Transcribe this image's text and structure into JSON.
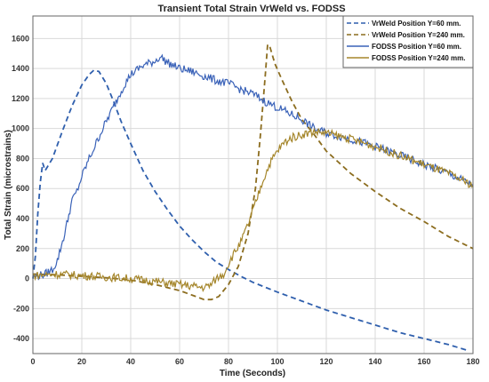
{
  "chart_data": {
    "type": "line",
    "title": "Transient Total Strain VrWeld vs. FODSS",
    "xlabel": "Time (Seconds)",
    "ylabel": "Total Strain (microstrains)",
    "xlim": [
      0,
      180
    ],
    "ylim": [
      -500,
      1750
    ],
    "xticks": [
      0,
      20,
      40,
      60,
      80,
      100,
      120,
      140,
      160,
      180
    ],
    "yticks": [
      -400,
      -200,
      0,
      200,
      400,
      600,
      800,
      1000,
      1200,
      1400,
      1600
    ],
    "grid": true,
    "legend_position": "top-right",
    "series": [
      {
        "name": "VrWeld Position Y=60 mm.",
        "style": "dashed",
        "color": "#2f5fad",
        "points": [
          [
            0,
            0
          ],
          [
            1,
            150
          ],
          [
            2,
            430
          ],
          [
            3,
            640
          ],
          [
            4,
            770
          ],
          [
            5,
            720
          ],
          [
            8,
            800
          ],
          [
            12,
            980
          ],
          [
            16,
            1150
          ],
          [
            20,
            1290
          ],
          [
            23,
            1360
          ],
          [
            25,
            1390
          ],
          [
            27,
            1380
          ],
          [
            30,
            1300
          ],
          [
            33,
            1180
          ],
          [
            36,
            1050
          ],
          [
            40,
            900
          ],
          [
            45,
            720
          ],
          [
            50,
            580
          ],
          [
            55,
            460
          ],
          [
            60,
            350
          ],
          [
            65,
            260
          ],
          [
            70,
            180
          ],
          [
            75,
            110
          ],
          [
            80,
            60
          ],
          [
            85,
            15
          ],
          [
            90,
            -25
          ],
          [
            100,
            -90
          ],
          [
            110,
            -150
          ],
          [
            120,
            -210
          ],
          [
            130,
            -260
          ],
          [
            140,
            -310
          ],
          [
            150,
            -360
          ],
          [
            160,
            -400
          ],
          [
            170,
            -440
          ],
          [
            178,
            -480
          ]
        ]
      },
      {
        "name": "VrWeld Position Y=240 mm.",
        "style": "dashed",
        "color": "#8c6d1f",
        "points": [
          [
            0,
            30
          ],
          [
            10,
            25
          ],
          [
            20,
            15
          ],
          [
            30,
            5
          ],
          [
            40,
            -10
          ],
          [
            50,
            -40
          ],
          [
            60,
            -80
          ],
          [
            65,
            -110
          ],
          [
            70,
            -140
          ],
          [
            73,
            -140
          ],
          [
            76,
            -120
          ],
          [
            80,
            -40
          ],
          [
            84,
            80
          ],
          [
            88,
            300
          ],
          [
            91,
            600
          ],
          [
            93,
            950
          ],
          [
            95,
            1350
          ],
          [
            96,
            1560
          ],
          [
            97,
            1540
          ],
          [
            99,
            1430
          ],
          [
            102,
            1320
          ],
          [
            106,
            1180
          ],
          [
            110,
            1060
          ],
          [
            115,
            960
          ],
          [
            120,
            850
          ],
          [
            130,
            700
          ],
          [
            140,
            580
          ],
          [
            150,
            470
          ],
          [
            160,
            380
          ],
          [
            170,
            280
          ],
          [
            180,
            200
          ]
        ]
      },
      {
        "name": "FODSS Position Y=60 mm.",
        "style": "solid",
        "color": "#3a62b8",
        "points": [
          [
            0,
            10
          ],
          [
            5,
            30
          ],
          [
            8,
            60
          ],
          [
            10,
            120
          ],
          [
            13,
            300
          ],
          [
            16,
            520
          ],
          [
            18,
            580
          ],
          [
            20,
            680
          ],
          [
            23,
            800
          ],
          [
            25,
            870
          ],
          [
            28,
            980
          ],
          [
            31,
            1080
          ],
          [
            34,
            1180
          ],
          [
            37,
            1280
          ],
          [
            40,
            1360
          ],
          [
            45,
            1420
          ],
          [
            50,
            1450
          ],
          [
            52,
            1480
          ],
          [
            55,
            1440
          ],
          [
            60,
            1400
          ],
          [
            65,
            1380
          ],
          [
            70,
            1350
          ],
          [
            75,
            1320
          ],
          [
            80,
            1300
          ],
          [
            85,
            1260
          ],
          [
            90,
            1230
          ],
          [
            95,
            1180
          ],
          [
            100,
            1140
          ],
          [
            105,
            1100
          ],
          [
            110,
            1060
          ],
          [
            115,
            1000
          ],
          [
            120,
            970
          ],
          [
            130,
            930
          ],
          [
            140,
            880
          ],
          [
            150,
            820
          ],
          [
            160,
            760
          ],
          [
            170,
            700
          ],
          [
            180,
            620
          ]
        ]
      },
      {
        "name": "FODSS Position Y=240 mm.",
        "style": "solid",
        "color": "#a5862b",
        "points": [
          [
            0,
            20
          ],
          [
            10,
            30
          ],
          [
            20,
            20
          ],
          [
            30,
            10
          ],
          [
            40,
            0
          ],
          [
            50,
            -20
          ],
          [
            60,
            -40
          ],
          [
            65,
            -50
          ],
          [
            70,
            -60
          ],
          [
            73,
            -40
          ],
          [
            75,
            0
          ],
          [
            78,
            30
          ],
          [
            80,
            100
          ],
          [
            82,
            160
          ],
          [
            85,
            240
          ],
          [
            88,
            360
          ],
          [
            91,
            500
          ],
          [
            94,
            650
          ],
          [
            97,
            770
          ],
          [
            100,
            850
          ],
          [
            103,
            910
          ],
          [
            106,
            940
          ],
          [
            110,
            960
          ],
          [
            115,
            980
          ],
          [
            120,
            970
          ],
          [
            130,
            930
          ],
          [
            140,
            880
          ],
          [
            150,
            820
          ],
          [
            160,
            760
          ],
          [
            170,
            700
          ],
          [
            180,
            620
          ]
        ]
      }
    ]
  }
}
